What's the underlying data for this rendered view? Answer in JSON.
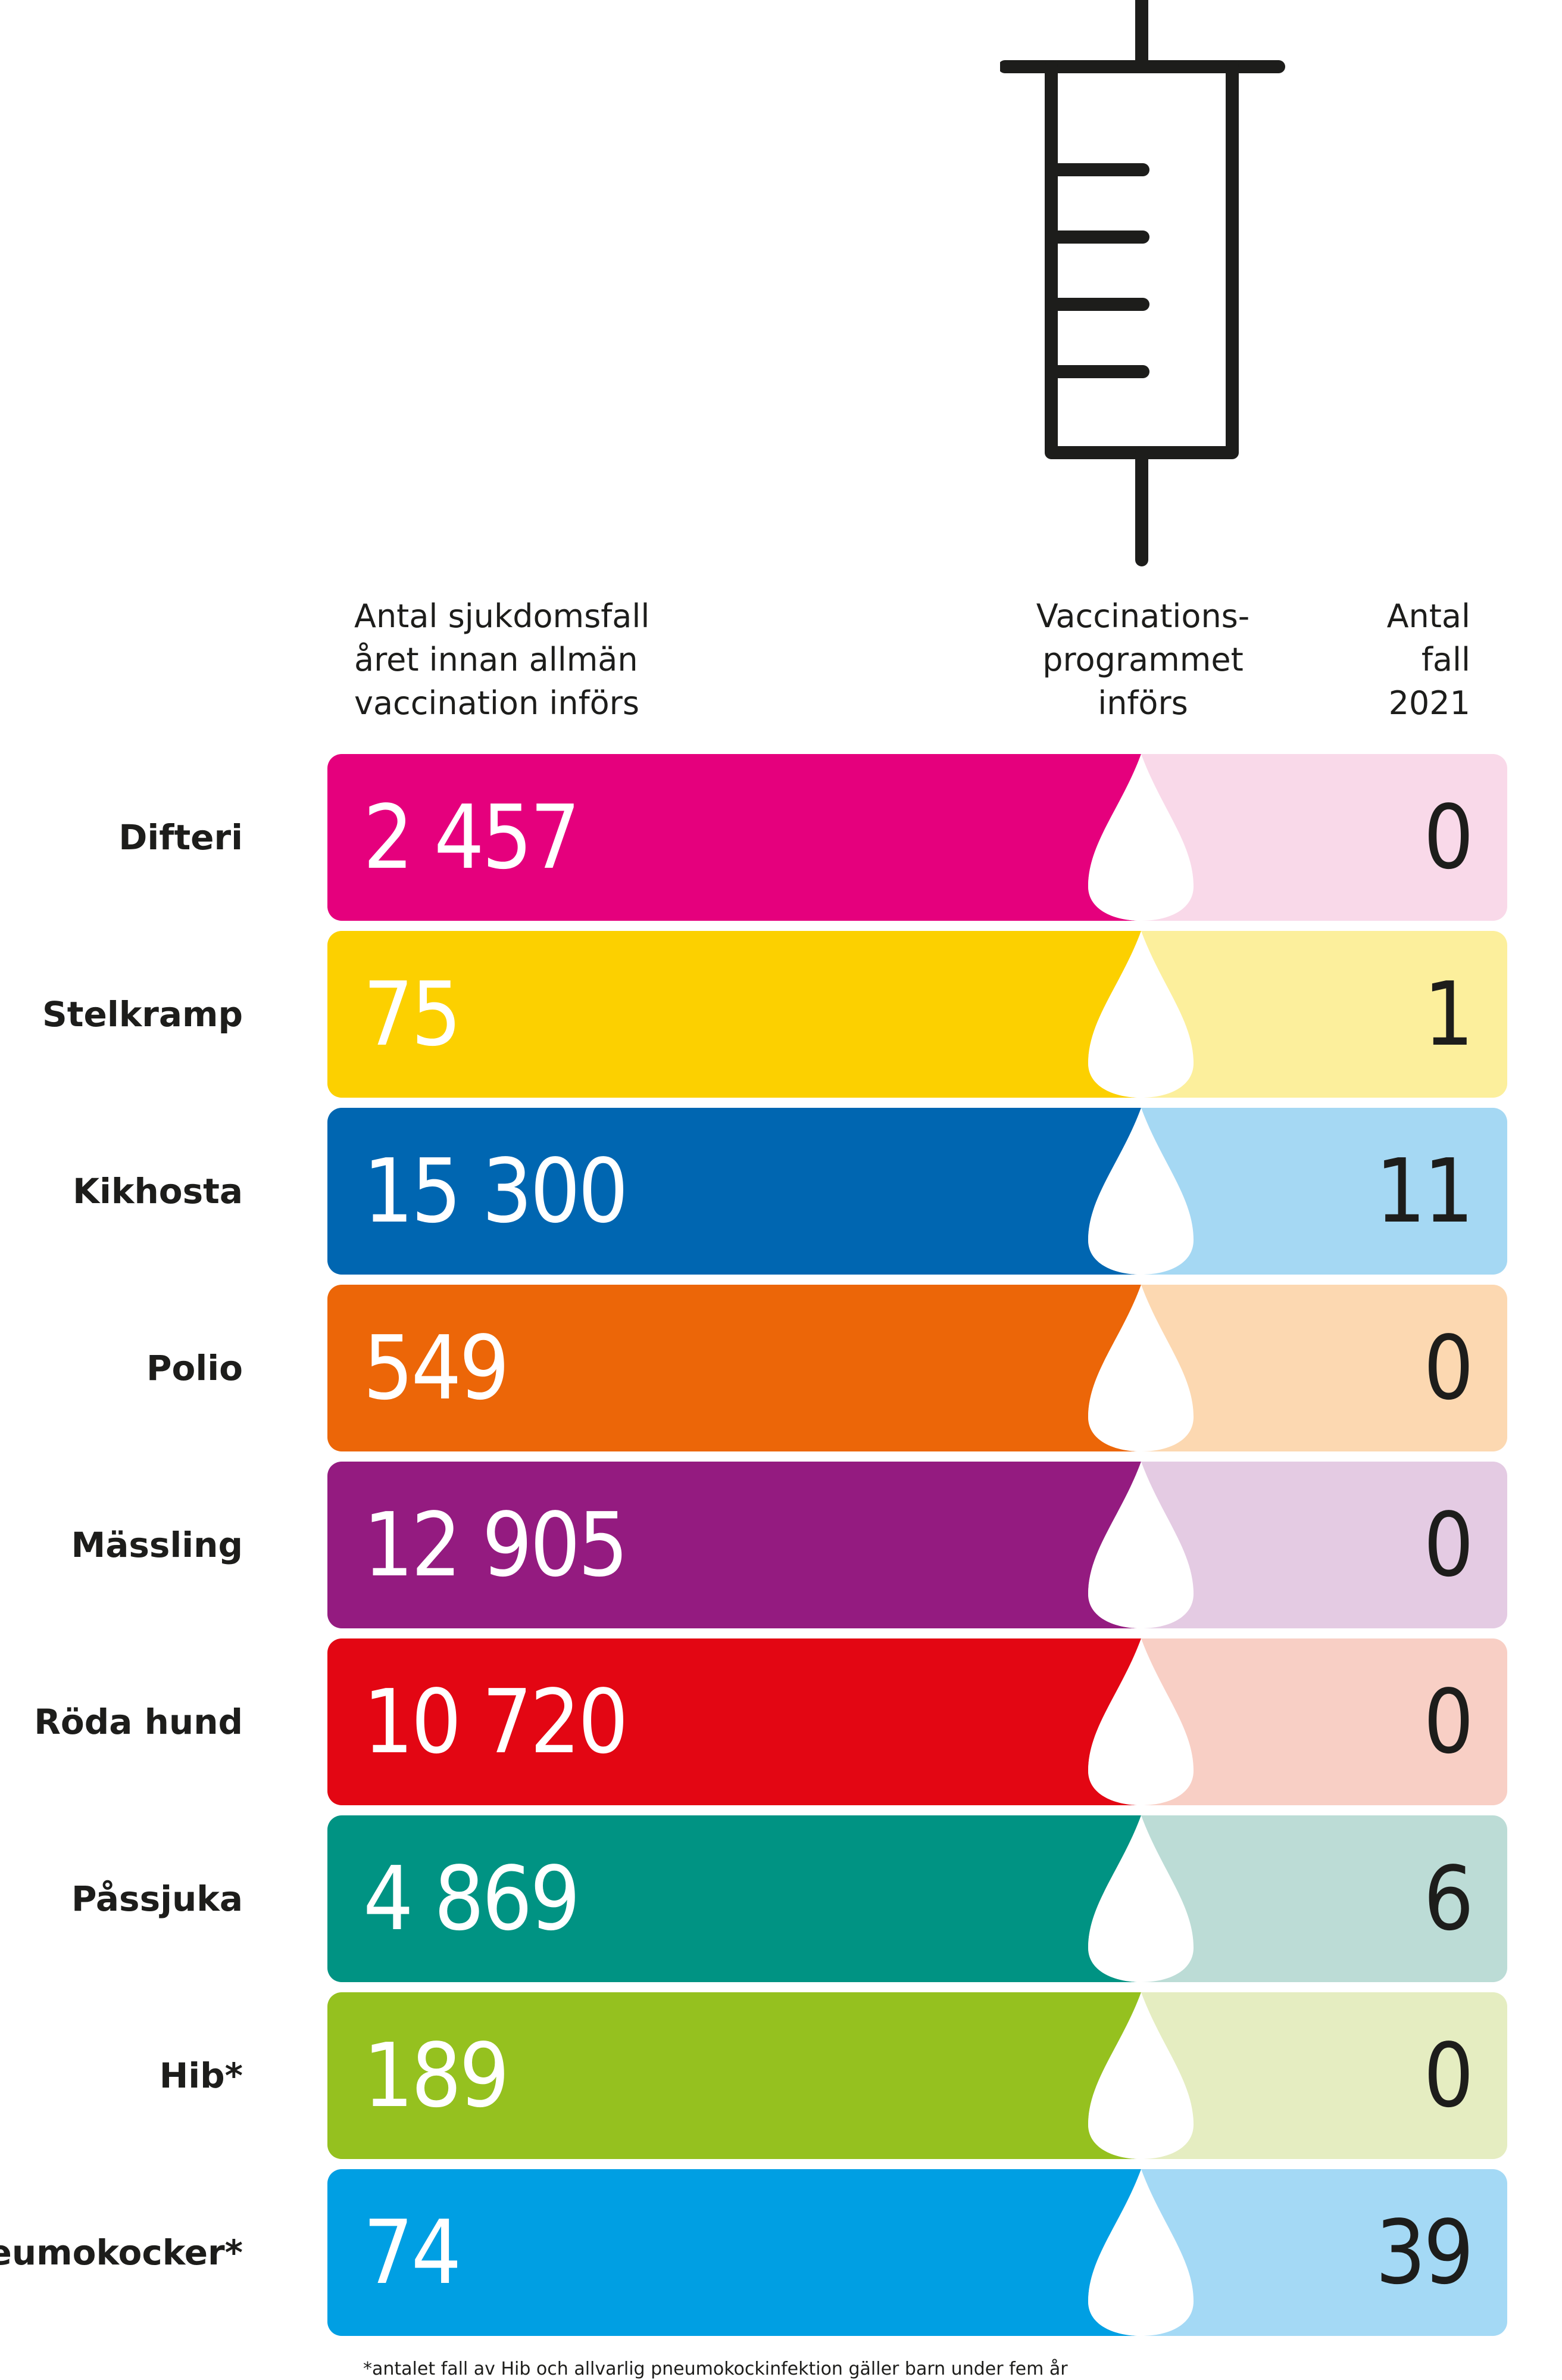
{
  "chart_data": {
    "type": "table",
    "columns": [
      "Antal sjukdomsfall året innan allmän vaccination införs",
      "Vaccinations-programmet införs",
      "Antal fall 2021"
    ],
    "header": {
      "left": [
        "Antal sjukdomsfall",
        "året innan allmän",
        "vaccination införs"
      ],
      "middle": [
        "Vaccinations-",
        "programmet",
        "införs"
      ],
      "right": [
        "Antal",
        "fall",
        "2021"
      ]
    },
    "rows": [
      {
        "name": "Difteri",
        "before": "2 457",
        "after": "0",
        "color": "#e5007d",
        "light": "#f9d9e9"
      },
      {
        "name": "Stelkramp",
        "before": "75",
        "after": "1",
        "color": "#fcd000",
        "light": "#fcef9c"
      },
      {
        "name": "Kikhosta",
        "before": "15 300",
        "after": "11",
        "color": "#0066b1",
        "light": "#a5d8f3"
      },
      {
        "name": "Polio",
        "before": "549",
        "after": "0",
        "color": "#ec6608",
        "light": "#fcd8b1"
      },
      {
        "name": "Mässling",
        "before": "12 905",
        "after": "0",
        "color": "#941b80",
        "light": "#e4cbe3"
      },
      {
        "name": "Röda hund",
        "before": "10 720",
        "after": "0",
        "color": "#e30613",
        "light": "#f8cfc5"
      },
      {
        "name": "Påssjuka",
        "before": "4 869",
        "after": "6",
        "color": "#009383",
        "light": "#bcdcd6"
      },
      {
        "name": "Hib*",
        "before": "189",
        "after": "0",
        "color": "#95c11f",
        "light": "#e5edc1"
      },
      {
        "name": "Pneumokocker*",
        "before": "74",
        "after": "39",
        "color": "#009fe3",
        "light": "#a4d9f5"
      }
    ],
    "footnote": "*antalet fall av Hib och allvarlig pneumokockinfektion gäller barn under fem år"
  }
}
